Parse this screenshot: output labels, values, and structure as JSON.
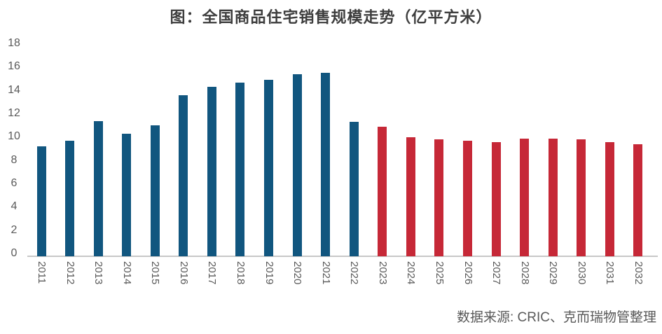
{
  "chart": {
    "title": "图：全国商品住宅销售规模走势（亿平方米）",
    "source": "数据来源: CRIC、克而瑞物管整理"
  },
  "colors": {
    "title_text": "#3d3d3d",
    "tick_label_text": "#595959",
    "source_text": "#595959",
    "axis_line": "#c8c8c8",
    "bar_historical": "#11567f",
    "bar_forecast": "#c62837"
  },
  "chart_data": {
    "type": "bar",
    "title": "图：全国商品住宅销售规模走势（亿平方米）",
    "xlabel": "",
    "ylabel": "",
    "ylim": [
      0,
      18
    ],
    "ytick_step": 2,
    "grid": false,
    "legend": "none",
    "categories": [
      "2011",
      "2012",
      "2013",
      "2014",
      "2015",
      "2016",
      "2017",
      "2018",
      "2019",
      "2020",
      "2021",
      "2022",
      "2023",
      "2024",
      "2025",
      "2026",
      "2027",
      "2028",
      "2029",
      "2030",
      "2031",
      "2032"
    ],
    "values": [
      9.4,
      9.9,
      11.6,
      10.5,
      11.2,
      13.8,
      14.5,
      14.9,
      15.1,
      15.6,
      15.7,
      11.5,
      11.1,
      10.2,
      10.0,
      9.9,
      9.8,
      10.1,
      10.1,
      10.0,
      9.8,
      9.6
    ],
    "bar_groups": [
      {
        "name": "historical",
        "from_year": 2011,
        "to_year": 2022,
        "color": "#11567f"
      },
      {
        "name": "forecast",
        "from_year": 2023,
        "to_year": 2032,
        "color": "#c62837"
      }
    ]
  }
}
